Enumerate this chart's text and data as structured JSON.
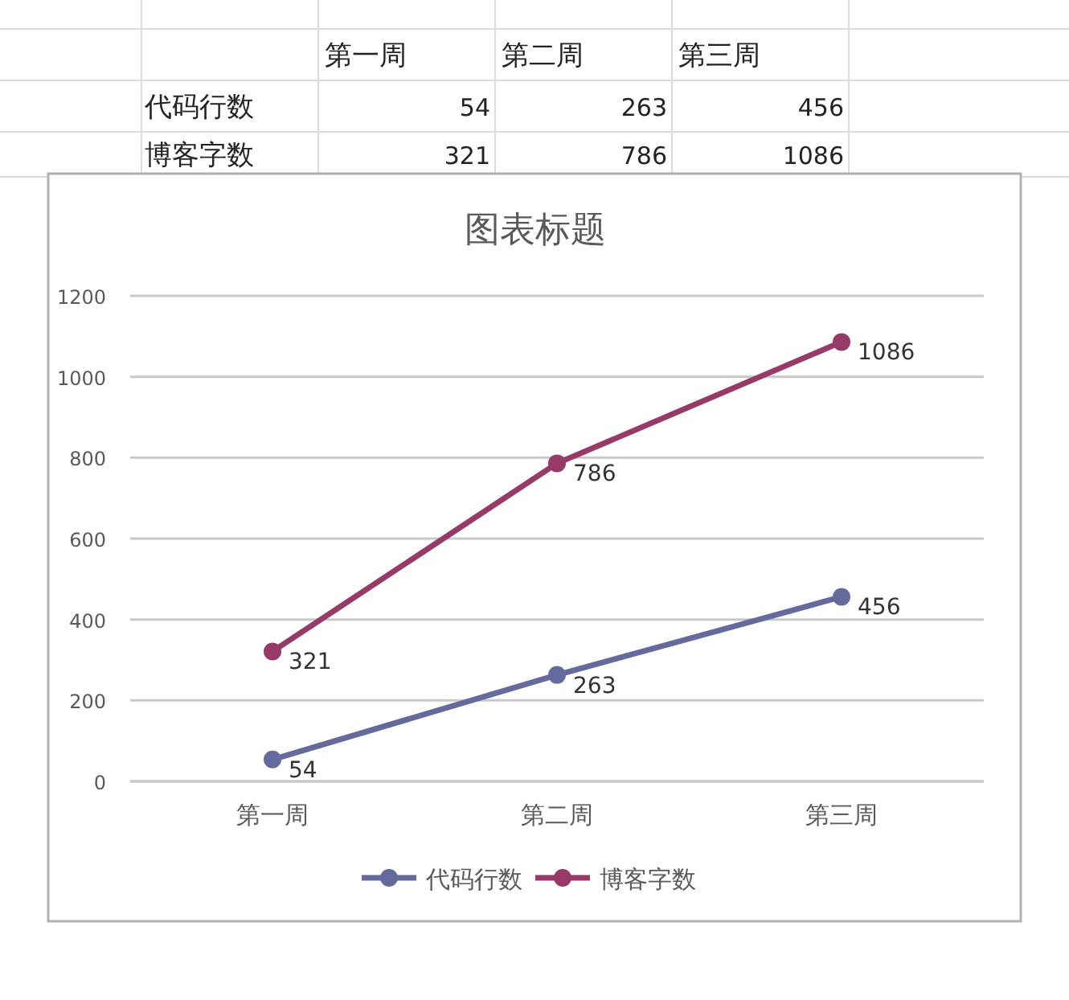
{
  "chart_data": {
    "type": "line",
    "title": "图表标题",
    "categories": [
      "第一周",
      "第二周",
      "第三周"
    ],
    "series": [
      {
        "name": "代码行数",
        "color": "#646a9c",
        "values": [
          54,
          263,
          456
        ]
      },
      {
        "name": "博客字数",
        "color": "#973a67",
        "values": [
          321,
          786,
          1086
        ]
      }
    ],
    "annotations": [
      "54",
      "263",
      "456",
      "321",
      "786",
      "1086"
    ],
    "ylim": [
      0,
      1200
    ],
    "yticks": [
      0,
      200,
      400,
      600,
      800,
      1000,
      1200
    ],
    "grid": "y",
    "legend": "bottom",
    "marker": "circle",
    "line_style": "solid",
    "data_labels": true
  }
}
